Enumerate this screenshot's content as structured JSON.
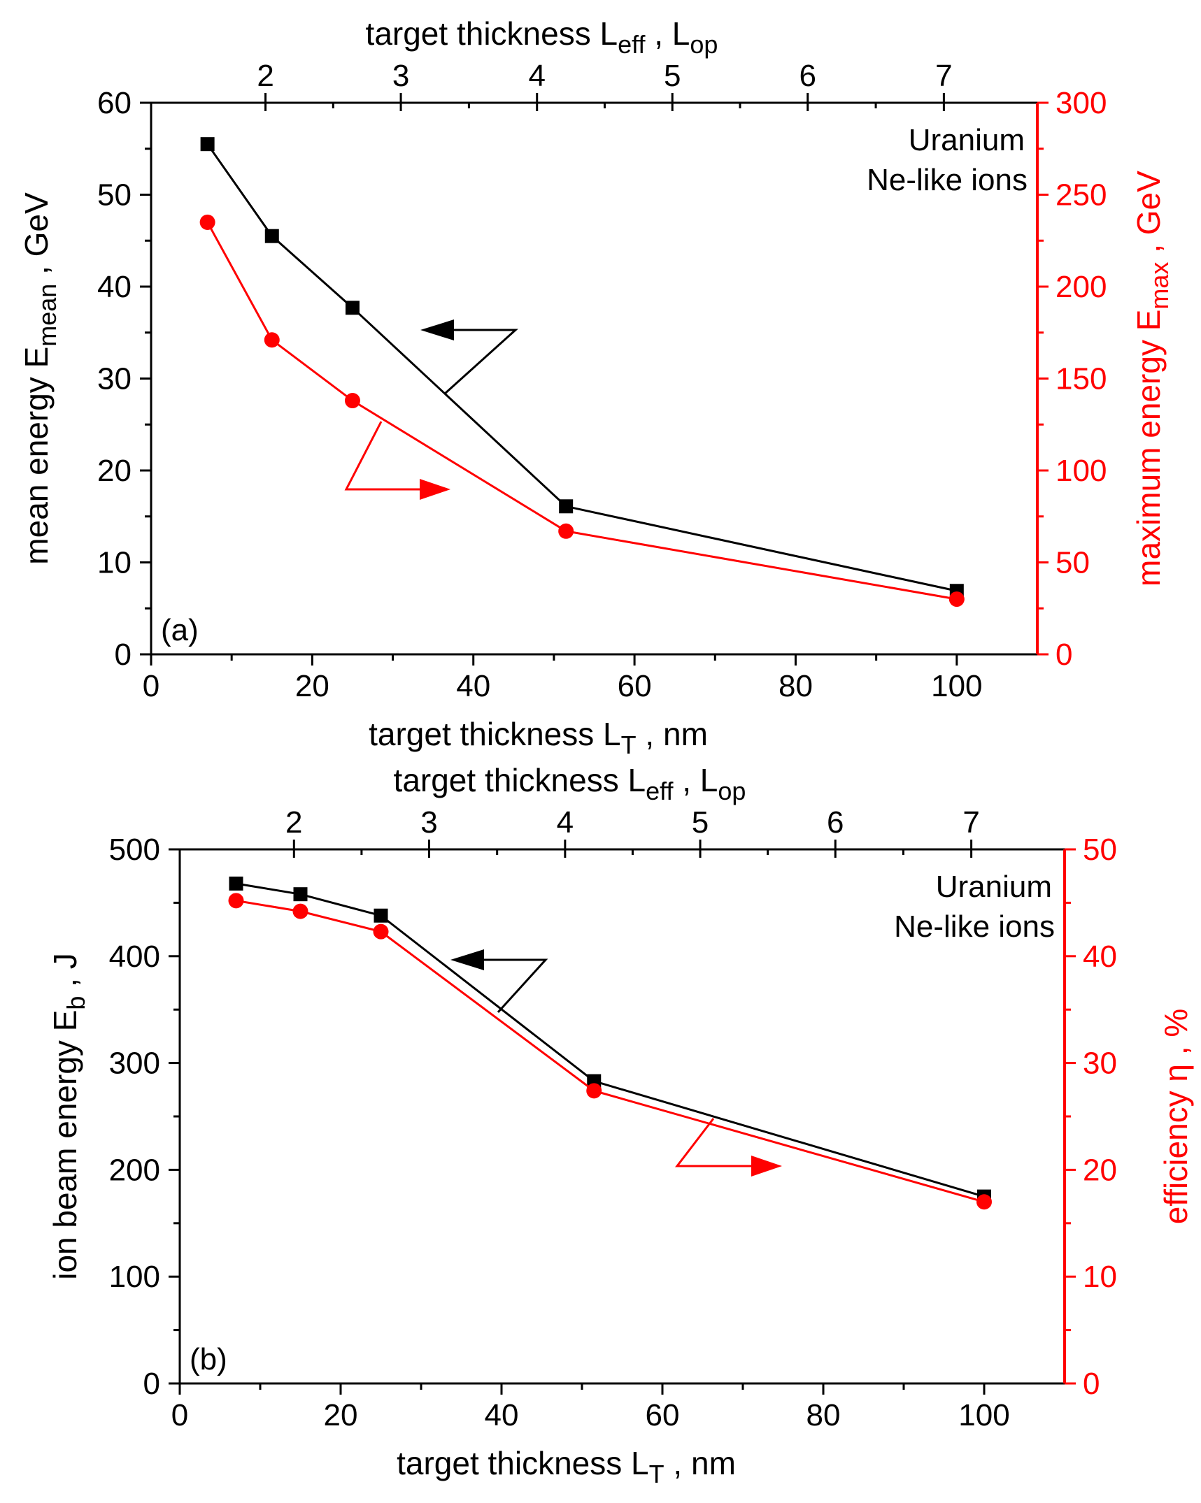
{
  "chart_data": [
    {
      "type": "line",
      "panel_label": "(a)",
      "annotation": [
        "Uranium",
        "Ne-like ions"
      ],
      "xlabel": {
        "main": "target thickness L",
        "sub": "T",
        "tail": " , nm"
      },
      "top_xlabel": {
        "p1": "target thickness L",
        "s1": "eff",
        "p2": " , L",
        "s2": "op"
      },
      "ylabel_left": {
        "main": "mean energy E",
        "sub": "mean",
        "tail": " , GeV"
      },
      "ylabel_right": {
        "main": "maximum energy E",
        "sub": "max",
        "tail": " , GeV"
      },
      "xlim": [
        0,
        110
      ],
      "ylim_left": [
        0,
        60
      ],
      "ylim_right": [
        0,
        300
      ],
      "xticks": [
        0,
        20,
        40,
        60,
        80,
        100
      ],
      "yticks_left": [
        0,
        10,
        20,
        30,
        40,
        50,
        60
      ],
      "yticks_right": [
        0,
        50,
        100,
        150,
        200,
        250,
        300
      ],
      "top_ticks": [
        {
          "label": "2",
          "x": 14.2
        },
        {
          "label": "3",
          "x": 31.0
        },
        {
          "label": "4",
          "x": 47.9
        },
        {
          "label": "5",
          "x": 64.7
        },
        {
          "label": "6",
          "x": 81.5
        },
        {
          "label": "7",
          "x": 98.4
        }
      ],
      "series": [
        {
          "axis": "left",
          "marker": "square",
          "color": "#000000",
          "x": [
            7,
            15,
            25,
            51.5,
            100
          ],
          "y": [
            55.5,
            45.5,
            37.7,
            16.1,
            6.9
          ]
        },
        {
          "axis": "right",
          "marker": "circle",
          "color": "#ff0000",
          "x": [
            7,
            15,
            25,
            51.5,
            100
          ],
          "y": [
            235,
            171,
            138,
            67,
            30
          ]
        }
      ]
    },
    {
      "type": "line",
      "panel_label": "(b)",
      "annotation": [
        "Uranium",
        "Ne-like ions"
      ],
      "xlabel": {
        "main": "target thickness L",
        "sub": "T",
        "tail": " , nm"
      },
      "top_xlabel": {
        "p1": "target thickness L",
        "s1": "eff",
        "p2": " , L",
        "s2": "op"
      },
      "ylabel_left": {
        "main": "ion  beam energy  E",
        "sub": "b",
        "tail": "  , J"
      },
      "ylabel_right": {
        "main": "efficiency ",
        "sub": "",
        "tail": "η , %"
      },
      "xlim": [
        0,
        110
      ],
      "ylim_left": [
        0,
        500
      ],
      "ylim_right": [
        0,
        50
      ],
      "xticks": [
        0,
        20,
        40,
        60,
        80,
        100
      ],
      "yticks_left": [
        0,
        100,
        200,
        300,
        400,
        500
      ],
      "yticks_right": [
        0,
        10,
        20,
        30,
        40,
        50
      ],
      "top_ticks": [
        {
          "label": "2",
          "x": 14.2
        },
        {
          "label": "3",
          "x": 31.0
        },
        {
          "label": "4",
          "x": 47.9
        },
        {
          "label": "5",
          "x": 64.7
        },
        {
          "label": "6",
          "x": 81.5
        },
        {
          "label": "7",
          "x": 98.4
        }
      ],
      "series": [
        {
          "axis": "left",
          "marker": "square",
          "color": "#000000",
          "x": [
            7,
            15,
            25,
            51.5,
            100
          ],
          "y": [
            468,
            458,
            438,
            283,
            175
          ]
        },
        {
          "axis": "right",
          "marker": "circle",
          "color": "#ff0000",
          "x": [
            7,
            15,
            25,
            51.5,
            100
          ],
          "y": [
            45.2,
            44.2,
            42.3,
            27.4,
            17.0
          ]
        }
      ]
    }
  ]
}
